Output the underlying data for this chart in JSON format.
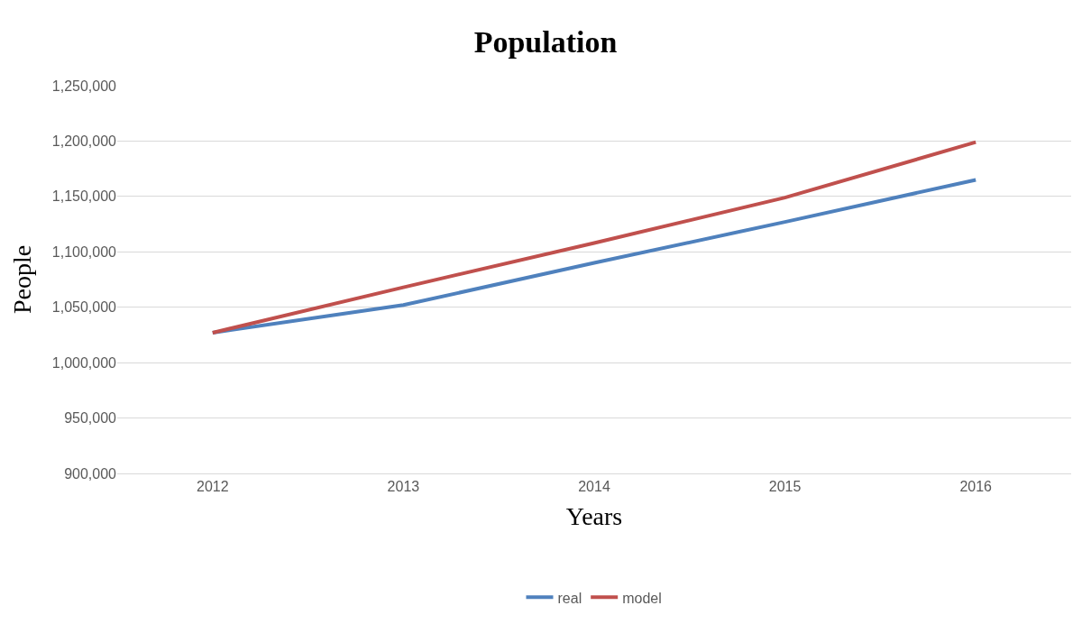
{
  "chart_data": {
    "type": "line",
    "title": "Population",
    "xlabel": "Years",
    "ylabel": "People",
    "categories": [
      "2012",
      "2013",
      "2014",
      "2015",
      "2016"
    ],
    "series": [
      {
        "name": "real",
        "color": "#4f81bd",
        "values": [
          1027000,
          1052000,
          1090000,
          1127000,
          1165000
        ]
      },
      {
        "name": "model",
        "color": "#c0504d",
        "values": [
          1027000,
          1068000,
          1108000,
          1149000,
          1199000
        ]
      }
    ],
    "ylim": [
      900000,
      1250000
    ],
    "yticks": [
      {
        "value": 900000,
        "label": "900,000"
      },
      {
        "value": 950000,
        "label": "950,000"
      },
      {
        "value": 1000000,
        "label": "1,000,000"
      },
      {
        "value": 1050000,
        "label": "1,050,000"
      },
      {
        "value": 1100000,
        "label": "1,100,000"
      },
      {
        "value": 1150000,
        "label": "1,150,000"
      },
      {
        "value": 1200000,
        "label": "1,200,000"
      },
      {
        "value": 1250000,
        "label": "1,250,000"
      }
    ],
    "grid": "y",
    "legend": "bottom",
    "marker": "none",
    "line_style": "solid"
  }
}
